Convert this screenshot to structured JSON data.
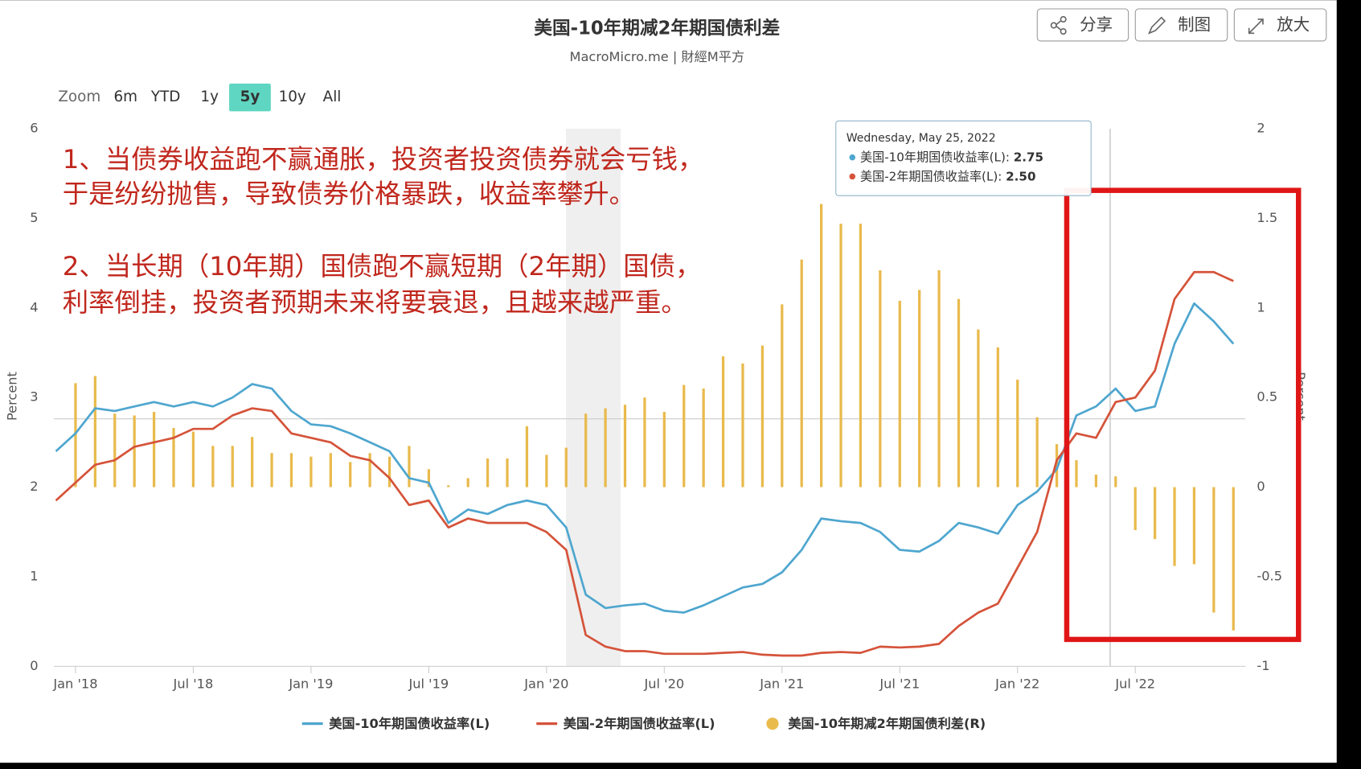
{
  "header": {
    "title": "美国-10年期减2年期国债利差",
    "subtitle": "MacroMicro.me | 財經M平方",
    "buttons": [
      "分享",
      "制图",
      "放大"
    ]
  },
  "zoom": {
    "label": "Zoom",
    "options": [
      "6m",
      "YTD",
      "1y",
      "5y",
      "10y",
      "All"
    ],
    "active": "5y"
  },
  "annotations": [
    "1、当债券收益跑不赢通胀，投资者投资债券就会亏钱，",
    "于是纷纷抛售，导致债券价格暴跌，收益率攀升。",
    "2、当长期（10年期）国债跑不赢短期（2年期）国债，",
    "利率倒挂，投资者预期未来将要衰退，且越来越严重。"
  ],
  "tooltip": {
    "date": "Wednesday, May 25, 2022",
    "values": [
      2.75,
      2.5
    ],
    "value_labels": [
      "2.75",
      "2.50"
    ]
  },
  "chart_data": {
    "type": "line",
    "ylabel": "Percent",
    "y2label": "Percent",
    "x": [
      "2017-12",
      "2018-01",
      "2018-02",
      "2018-03",
      "2018-04",
      "2018-05",
      "2018-06",
      "2018-07",
      "2018-08",
      "2018-09",
      "2018-10",
      "2018-11",
      "2018-12",
      "2019-01",
      "2019-02",
      "2019-03",
      "2019-04",
      "2019-05",
      "2019-06",
      "2019-07",
      "2019-08",
      "2019-09",
      "2019-10",
      "2019-11",
      "2019-12",
      "2020-01",
      "2020-02",
      "2020-03",
      "2020-04",
      "2020-05",
      "2020-06",
      "2020-07",
      "2020-08",
      "2020-09",
      "2020-10",
      "2020-11",
      "2020-12",
      "2021-01",
      "2021-02",
      "2021-03",
      "2021-04",
      "2021-05",
      "2021-06",
      "2021-07",
      "2021-08",
      "2021-09",
      "2021-10",
      "2021-11",
      "2021-12",
      "2022-01",
      "2022-02",
      "2022-03",
      "2022-04",
      "2022-05",
      "2022-06",
      "2022-07",
      "2022-08",
      "2022-09",
      "2022-10",
      "2022-11",
      "2022-12"
    ],
    "xlim": [
      "2017-12",
      "2022-12"
    ],
    "xticks": [
      {
        "value": "2018-01",
        "label": "Jan '18"
      },
      {
        "value": "2018-07",
        "label": "Jul '18"
      },
      {
        "value": "2019-01",
        "label": "Jan '19"
      },
      {
        "value": "2019-07",
        "label": "Jul '19"
      },
      {
        "value": "2020-01",
        "label": "Jan '20"
      },
      {
        "value": "2020-07",
        "label": "Jul '20"
      },
      {
        "value": "2021-01",
        "label": "Jan '21"
      },
      {
        "value": "2021-07",
        "label": "Jul '21"
      },
      {
        "value": "2022-01",
        "label": "Jan '22"
      },
      {
        "value": "2022-07",
        "label": "Jul '22"
      }
    ],
    "ylim": [
      0,
      6
    ],
    "yticks": [
      0,
      1,
      2,
      3,
      4,
      5,
      6
    ],
    "y2lim": [
      -1,
      2
    ],
    "y2ticks": [
      -1,
      -0.5,
      0,
      0.5,
      1,
      1.5,
      2
    ],
    "grid": false,
    "series": [
      {
        "name": "美国-10年期国债收益率(L)",
        "type": "line",
        "color": "#4ea6cf",
        "values": [
          2.4,
          2.6,
          2.88,
          2.85,
          2.9,
          2.95,
          2.9,
          2.95,
          2.9,
          3.0,
          3.15,
          3.1,
          2.85,
          2.7,
          2.68,
          2.6,
          2.5,
          2.4,
          2.1,
          2.05,
          1.6,
          1.75,
          1.7,
          1.8,
          1.85,
          1.8,
          1.55,
          0.8,
          0.65,
          0.68,
          0.7,
          0.62,
          0.6,
          0.68,
          0.78,
          0.88,
          0.92,
          1.05,
          1.3,
          1.65,
          1.62,
          1.6,
          1.5,
          1.3,
          1.28,
          1.4,
          1.6,
          1.55,
          1.48,
          1.8,
          1.95,
          2.2,
          2.8,
          2.9,
          3.1,
          2.85,
          2.9,
          3.6,
          4.05,
          3.85,
          3.6
        ]
      },
      {
        "name": "美国-2年期国债收益率(L)",
        "type": "line",
        "color": "#d5533a",
        "values": [
          1.85,
          2.05,
          2.25,
          2.3,
          2.45,
          2.5,
          2.55,
          2.65,
          2.65,
          2.8,
          2.88,
          2.85,
          2.6,
          2.55,
          2.5,
          2.35,
          2.3,
          2.1,
          1.8,
          1.85,
          1.55,
          1.65,
          1.6,
          1.6,
          1.6,
          1.5,
          1.3,
          0.35,
          0.22,
          0.17,
          0.17,
          0.14,
          0.14,
          0.14,
          0.15,
          0.16,
          0.13,
          0.12,
          0.12,
          0.15,
          0.16,
          0.15,
          0.22,
          0.21,
          0.22,
          0.25,
          0.45,
          0.6,
          0.7,
          1.1,
          1.5,
          2.3,
          2.6,
          2.55,
          2.95,
          3.0,
          3.3,
          4.1,
          4.4,
          4.4,
          4.3
        ]
      },
      {
        "name": "美国-10年期减2年期国债利差(R)",
        "type": "bar",
        "axis": "y2",
        "color": "#e9ba4c",
        "values": [
          null,
          0.58,
          0.62,
          0.41,
          0.4,
          0.42,
          0.33,
          0.31,
          0.23,
          0.23,
          0.28,
          0.19,
          0.19,
          0.17,
          0.19,
          0.14,
          0.19,
          0.17,
          0.23,
          0.1,
          0.01,
          0.05,
          0.16,
          0.16,
          0.34,
          0.18,
          0.22,
          0.41,
          0.44,
          0.46,
          0.5,
          0.42,
          0.57,
          0.55,
          0.73,
          0.69,
          0.79,
          1.02,
          1.27,
          1.58,
          1.47,
          1.47,
          1.21,
          1.04,
          1.1,
          1.21,
          1.05,
          0.88,
          0.78,
          0.6,
          0.39,
          0.24,
          0.15,
          0.07,
          0.06,
          -0.24,
          -0.29,
          -0.44,
          -0.43,
          -0.7,
          -0.8
        ]
      }
    ]
  }
}
